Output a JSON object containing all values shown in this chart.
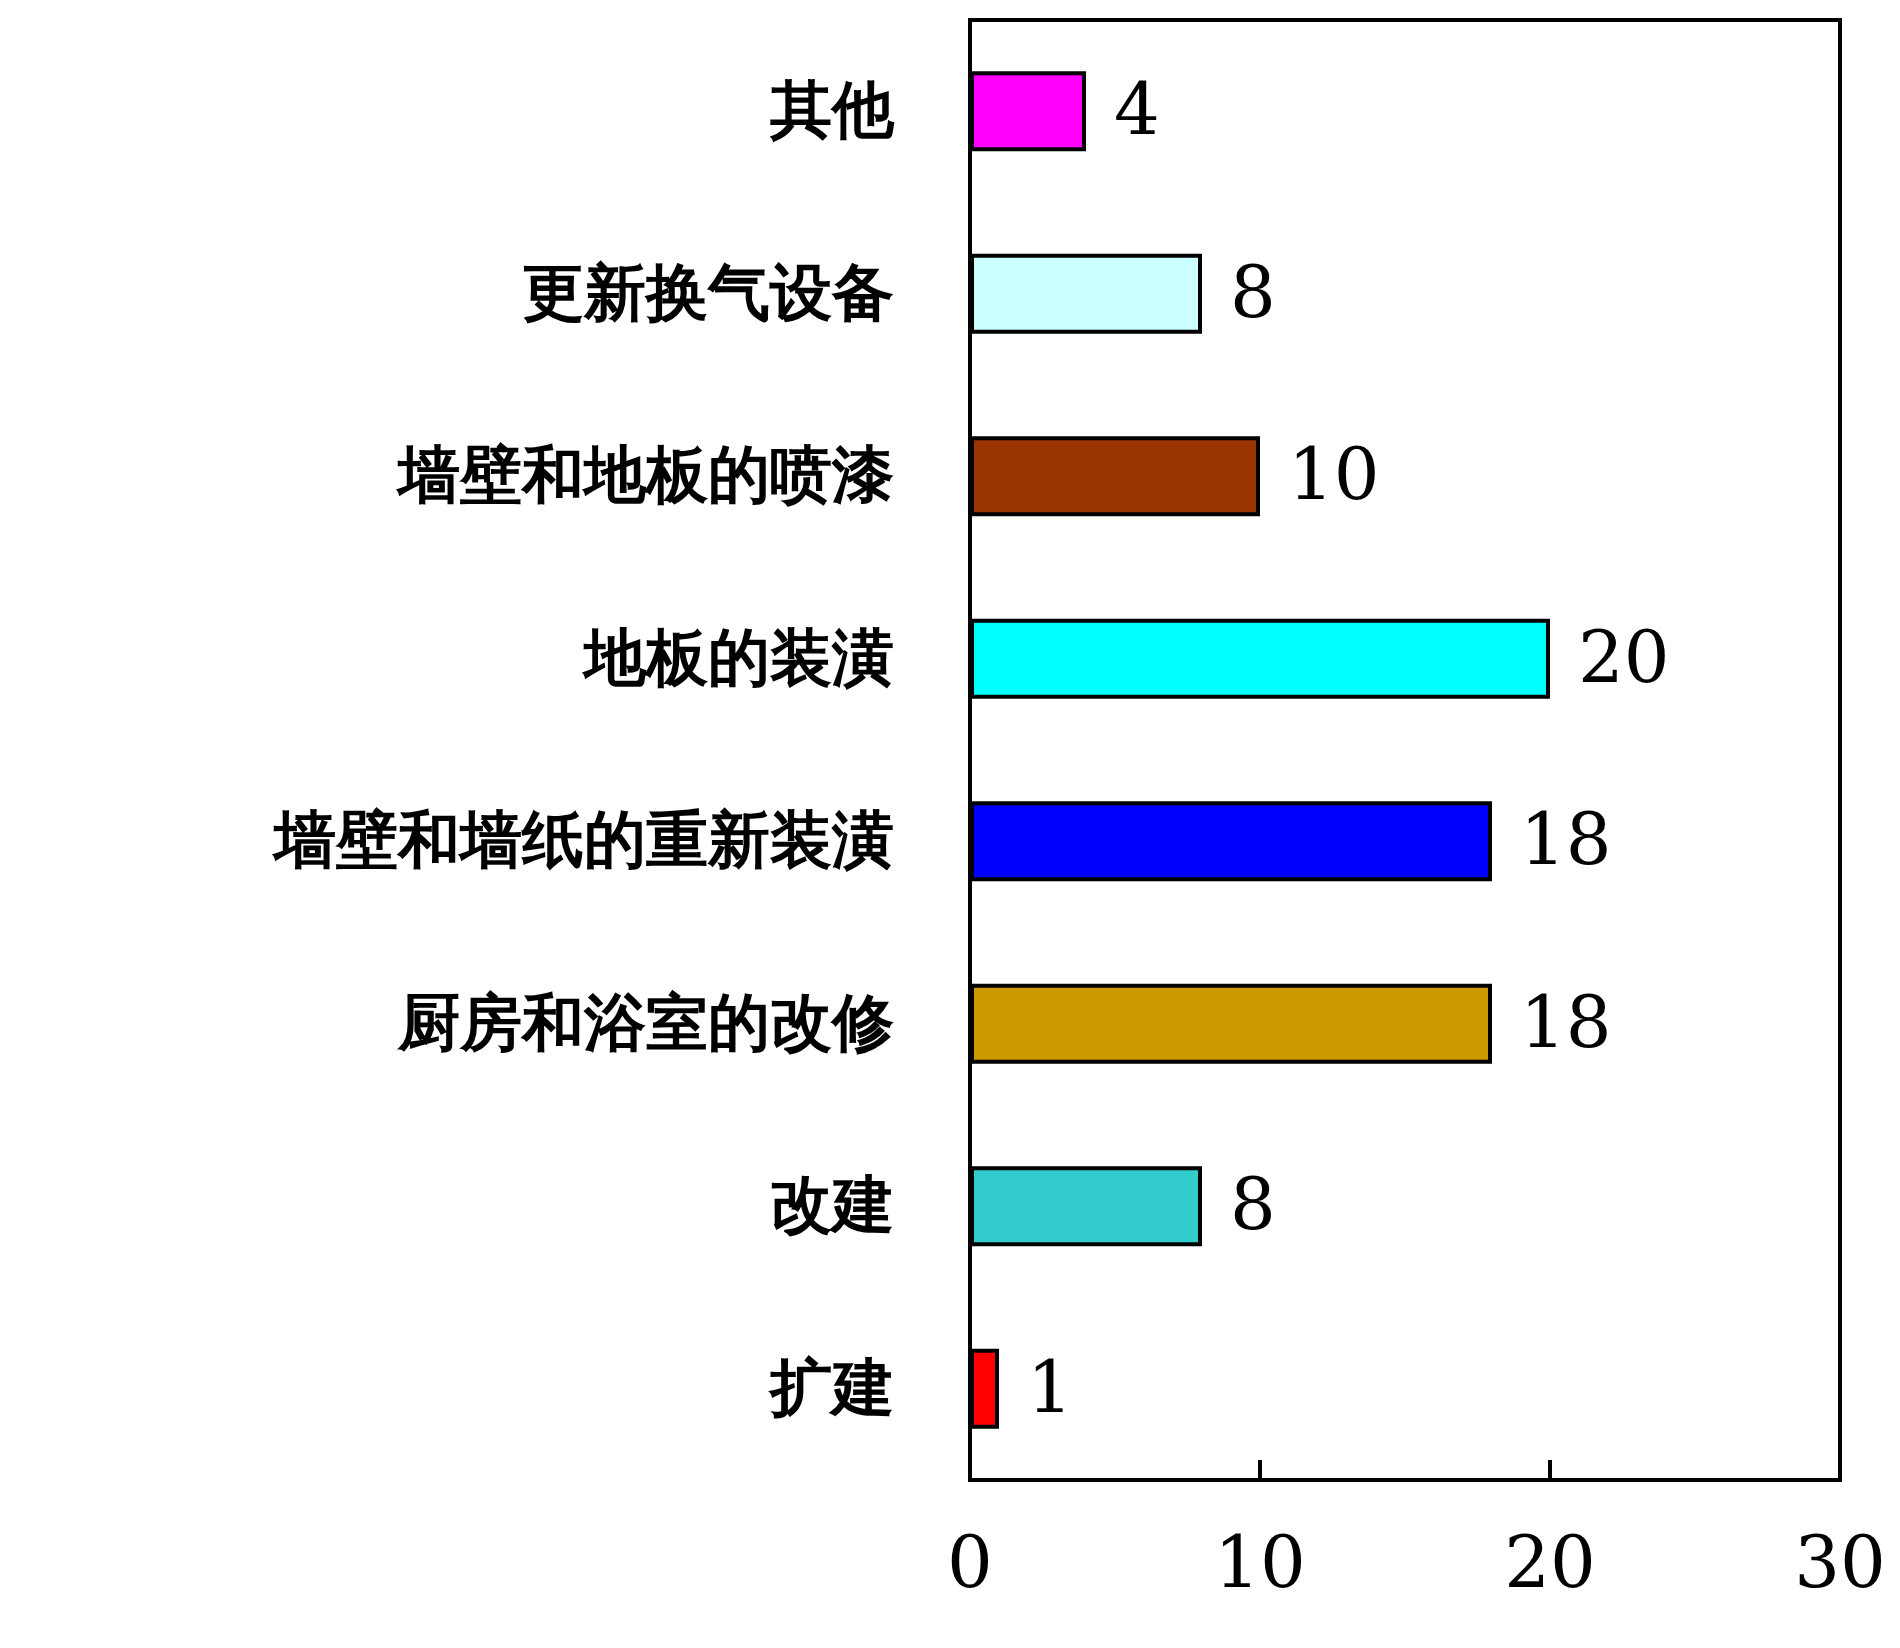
{
  "chart_data": {
    "type": "bar",
    "orientation": "horizontal",
    "categories": [
      "其他",
      "更新换气设备",
      "墙壁和地板的喷漆",
      "地板的装潢",
      "墙壁和墙纸的重新装潢",
      "厨房和浴室的改修",
      "改建",
      "扩建"
    ],
    "values": [
      4,
      8,
      10,
      20,
      18,
      18,
      8,
      1
    ],
    "colors": [
      "#ff00ff",
      "#ccffff",
      "#993300",
      "#00ffff",
      "#0000ff",
      "#cc9900",
      "#33cccc",
      "#ff0000"
    ],
    "xlim": [
      0,
      30
    ],
    "xticks": [
      0,
      10,
      20,
      30
    ],
    "data_labels": true,
    "grid": false
  }
}
